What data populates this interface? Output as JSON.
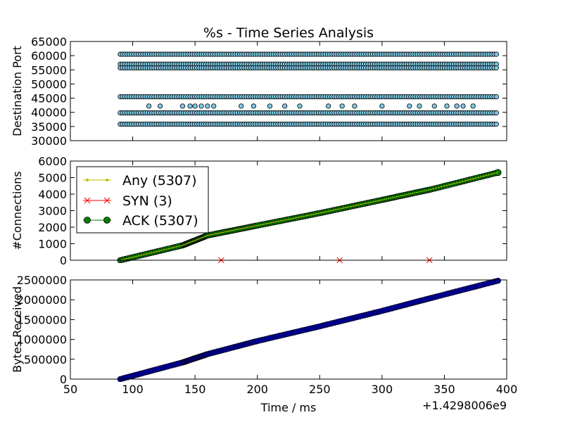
{
  "title": "%s - Time Series Analysis",
  "x_offset_label": "+1.4298006e9",
  "xlabel": "Time / ms",
  "x_ticks": [
    50,
    100,
    150,
    200,
    250,
    300,
    350,
    400
  ],
  "colors": {
    "ports_face": "#7ec8e3",
    "any": "#bfbf00",
    "syn": "#ff0000",
    "ack": "#007f00",
    "bytes": "#0000a0",
    "edge": "#000000"
  },
  "chart_data": [
    {
      "type": "scatter",
      "name": "ports",
      "ylabel": "Destination Port",
      "xlim": [
        50,
        400
      ],
      "ylim": [
        30000,
        65000
      ],
      "y_ticks": [
        30000,
        35000,
        40000,
        45000,
        50000,
        55000,
        60000,
        65000
      ],
      "bands": [
        {
          "y": 60500,
          "x": [
            90,
            393
          ]
        },
        {
          "y": 57000,
          "x": [
            90,
            393
          ]
        },
        {
          "y": 55700,
          "x": [
            90,
            393
          ]
        },
        {
          "y": 45500,
          "x": [
            90,
            393
          ]
        },
        {
          "y": 39800,
          "x": [
            90,
            393
          ]
        },
        {
          "y": 35800,
          "x": [
            90,
            393
          ]
        }
      ],
      "sparse_points": [
        {
          "x": 113,
          "y": 42200
        },
        {
          "x": 122,
          "y": 42200
        },
        {
          "x": 140,
          "y": 42200
        },
        {
          "x": 146,
          "y": 42200
        },
        {
          "x": 150,
          "y": 42200
        },
        {
          "x": 155,
          "y": 42200
        },
        {
          "x": 160,
          "y": 42200
        },
        {
          "x": 165,
          "y": 42200
        },
        {
          "x": 187,
          "y": 42200
        },
        {
          "x": 197,
          "y": 42200
        },
        {
          "x": 210,
          "y": 42200
        },
        {
          "x": 222,
          "y": 42200
        },
        {
          "x": 234,
          "y": 42200
        },
        {
          "x": 257,
          "y": 42200
        },
        {
          "x": 268,
          "y": 42200
        },
        {
          "x": 278,
          "y": 42200
        },
        {
          "x": 300,
          "y": 42200
        },
        {
          "x": 322,
          "y": 42200
        },
        {
          "x": 330,
          "y": 42200
        },
        {
          "x": 342,
          "y": 42200
        },
        {
          "x": 352,
          "y": 42200
        },
        {
          "x": 360,
          "y": 42200
        },
        {
          "x": 365,
          "y": 42200
        },
        {
          "x": 373,
          "y": 42200
        }
      ]
    },
    {
      "type": "line",
      "name": "connections",
      "ylabel": "#Connections",
      "xlim": [
        50,
        400
      ],
      "ylim": [
        0,
        6000
      ],
      "y_ticks": [
        0,
        1000,
        2000,
        3000,
        4000,
        5000,
        6000
      ],
      "legend_position": "upper-left",
      "series": [
        {
          "name": "Any (5307)",
          "marker": "dot",
          "x": [
            90,
            140,
            160,
            200,
            250,
            300,
            340,
            393
          ],
          "y": [
            0,
            900,
            1500,
            2100,
            2850,
            3650,
            4300,
            5307
          ]
        },
        {
          "name": "SYN (3)",
          "marker": "x",
          "x": [
            171,
            266,
            338
          ],
          "y": [
            0,
            0,
            0
          ]
        },
        {
          "name": "ACK (5307)",
          "marker": "circle",
          "x": [
            90,
            140,
            160,
            200,
            250,
            300,
            340,
            393
          ],
          "y": [
            0,
            900,
            1500,
            2100,
            2850,
            3650,
            4300,
            5307
          ]
        }
      ]
    },
    {
      "type": "scatter",
      "name": "bytes",
      "ylabel": "Bytes Received",
      "xlim": [
        50,
        400
      ],
      "ylim": [
        0,
        2500000
      ],
      "y_ticks": [
        0,
        500000,
        1000000,
        1500000,
        2000000,
        2500000
      ],
      "x": [
        90,
        140,
        160,
        200,
        250,
        300,
        340,
        393
      ],
      "y": [
        0,
        420000,
        630000,
        960000,
        1330000,
        1720000,
        2050000,
        2480000
      ]
    }
  ]
}
